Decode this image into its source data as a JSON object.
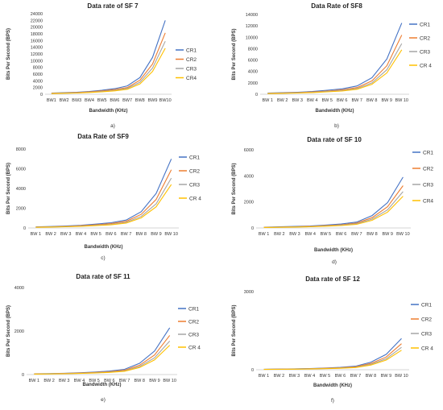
{
  "series_colors": [
    "#4472C4",
    "#ED7D31",
    "#A5A5A5",
    "#FFC000"
  ],
  "chart_data": [
    {
      "type": "line",
      "title": "Data rate of SF 7",
      "xlabel": "Bandwidth (KHz)",
      "ylabel": "Bits Per Second (BPS)",
      "caption": "a)",
      "categories": [
        "BW1",
        "BW2",
        "BW3",
        "BW4",
        "BW5",
        "BW6",
        "BW7",
        "BW8",
        "BW9",
        "BW10"
      ],
      "yticks": [
        0,
        2000,
        4000,
        6000,
        8000,
        10000,
        12000,
        14000,
        16000,
        18000,
        20000,
        22000,
        24000
      ],
      "ylim": [
        0,
        24000
      ],
      "legend_position": "right",
      "series": [
        {
          "name": "CR1",
          "values": [
            350,
            450,
            600,
            850,
            1200,
            1650,
            2500,
            5000,
            11000,
            22000
          ]
        },
        {
          "name": "CR2",
          "values": [
            280,
            380,
            500,
            700,
            1000,
            1400,
            2000,
            4200,
            9000,
            18300
          ]
        },
        {
          "name": "CR3",
          "values": [
            240,
            320,
            420,
            600,
            850,
            1150,
            1750,
            3600,
            7800,
            15800
          ]
        },
        {
          "name": "CR4",
          "values": [
            200,
            280,
            370,
            520,
            730,
            1000,
            1500,
            3100,
            6800,
            13700
          ]
        }
      ]
    },
    {
      "type": "line",
      "title": "Data Rate of SF8",
      "xlabel": "Bandwidth (KHz)",
      "ylabel": "Bits Per Second (BPS)",
      "caption": "b)",
      "categories": [
        "BW 1",
        "BW 2",
        "BW 3",
        "BW 4",
        "BW 5",
        "BW 6",
        "BW 7",
        "BW 8",
        "BW 9",
        "BW 10"
      ],
      "yticks": [
        0,
        2000,
        4000,
        6000,
        8000,
        10000,
        12000,
        14000
      ],
      "ylim": [
        0,
        14000
      ],
      "legend_position": "right",
      "series": [
        {
          "name": "CR1",
          "values": [
            200,
            270,
            360,
            480,
            700,
            950,
            1450,
            2900,
            6200,
            12500
          ]
        },
        {
          "name": "CR2",
          "values": [
            160,
            220,
            290,
            390,
            570,
            770,
            1180,
            2350,
            5000,
            10400
          ]
        },
        {
          "name": "CR3",
          "values": [
            140,
            190,
            250,
            330,
            480,
            650,
            1000,
            2000,
            4300,
            8900
          ]
        },
        {
          "name": "CR 4",
          "values": [
            120,
            160,
            210,
            290,
            420,
            570,
            870,
            1750,
            3750,
            7800
          ]
        }
      ]
    },
    {
      "type": "line",
      "title": "Data Rate of SF9",
      "xlabel": "Bandwidth (KHz)",
      "ylabel": "Bits Per Second (BPS)",
      "caption": "c)",
      "categories": [
        "BW 1",
        "BW 2",
        "BW 3",
        "BW 4",
        "BW 5",
        "BW 6",
        "BW 7",
        "BW 8",
        "BW 9",
        "BW 10"
      ],
      "yticks": [
        0,
        2000,
        4000,
        6000,
        8000
      ],
      "ylim": [
        0,
        8000
      ],
      "legend_position": "right",
      "series": [
        {
          "name": "CR1",
          "values": [
            110,
            150,
            200,
            270,
            390,
            530,
            800,
            1650,
            3500,
            7000
          ]
        },
        {
          "name": "CR2",
          "values": [
            90,
            125,
            165,
            225,
            320,
            440,
            670,
            1380,
            2900,
            5900
          ]
        },
        {
          "name": "CR3",
          "values": [
            75,
            105,
            140,
            190,
            270,
            370,
            570,
            1170,
            2450,
            5050
          ]
        },
        {
          "name": "CR 4",
          "values": [
            65,
            90,
            120,
            165,
            235,
            320,
            495,
            1020,
            2150,
            4400
          ]
        }
      ]
    },
    {
      "type": "line",
      "title": "Data rate of SF 10",
      "xlabel": "Bandwidth (KHz)",
      "ylabel": "Bits Per Second (BPS)",
      "caption": "d)",
      "categories": [
        "BW 1",
        "BW 2",
        "BW 3",
        "BW 4",
        "BW 5",
        "BW 6",
        "BW 7",
        "BW 8",
        "BW 9",
        "BW 10"
      ],
      "yticks": [
        0,
        2000,
        4000,
        6000
      ],
      "ylim": [
        0,
        6000
      ],
      "legend_position": "right",
      "series": [
        {
          "name": "CR1",
          "values": [
            60,
            85,
            115,
            150,
            220,
            300,
            450,
            950,
            1950,
            3900
          ]
        },
        {
          "name": "CR2",
          "values": [
            50,
            70,
            95,
            125,
            185,
            250,
            375,
            790,
            1630,
            3250
          ]
        },
        {
          "name": "CR3",
          "values": [
            43,
            60,
            80,
            107,
            158,
            215,
            320,
            680,
            1390,
            2790
          ]
        },
        {
          "name": "CR4",
          "values": [
            37,
            52,
            70,
            94,
            138,
            188,
            280,
            590,
            1220,
            2440
          ]
        }
      ]
    },
    {
      "type": "line",
      "title": "Data rate of SF 11",
      "xlabel": "Bandwidth (KHz)",
      "ylabel": "Bits Per Second (BPS)",
      "caption": "e)",
      "categories": [
        "BW 1",
        "BW 2",
        "BW 3",
        "BW 4",
        "BW 5",
        "BW 6",
        "BW 7",
        "BW 8",
        "BW 9",
        "BW 10"
      ],
      "yticks": [
        0,
        2000,
        4000
      ],
      "ylim": [
        0,
        4000
      ],
      "legend_position": "right",
      "series": [
        {
          "name": "CR1",
          "values": [
            35,
            45,
            60,
            80,
            115,
            160,
            240,
            520,
            1080,
            2150
          ]
        },
        {
          "name": "CR2",
          "values": [
            28,
            38,
            50,
            67,
            96,
            133,
            200,
            430,
            900,
            1800
          ]
        },
        {
          "name": "CR3",
          "values": [
            24,
            33,
            43,
            57,
            82,
            114,
            172,
            370,
            770,
            1540
          ]
        },
        {
          "name": "CR 4",
          "values": [
            21,
            28,
            38,
            50,
            72,
            100,
            150,
            325,
            675,
            1350
          ]
        }
      ]
    },
    {
      "type": "line",
      "title": "Data rate of SF 12",
      "xlabel": "Bandwidth (KHz)",
      "ylabel": "Bits Per Second (BPS)",
      "caption": "f)",
      "categories": [
        "BW 1",
        "BW 2",
        "BW 3",
        "BW 4",
        "BW 5",
        "BW 6",
        "BW 7",
        "BW 8",
        "BW 9",
        "BW 10"
      ],
      "yticks": [
        0,
        3000
      ],
      "ylim": [
        0,
        3000
      ],
      "legend_position": "right",
      "series": [
        {
          "name": "CR1",
          "values": [
            20,
            26,
            35,
            46,
            66,
            92,
            135,
            290,
            590,
            1200
          ]
        },
        {
          "name": "CR2",
          "values": [
            16,
            22,
            29,
            38,
            55,
            77,
            113,
            240,
            490,
            1000
          ]
        },
        {
          "name": "CR3",
          "values": [
            14,
            19,
            25,
            33,
            47,
            66,
            97,
            206,
            420,
            860
          ]
        },
        {
          "name": "CR 4",
          "values": [
            12,
            16,
            22,
            29,
            41,
            57,
            84,
            180,
            370,
            750
          ]
        }
      ]
    }
  ]
}
